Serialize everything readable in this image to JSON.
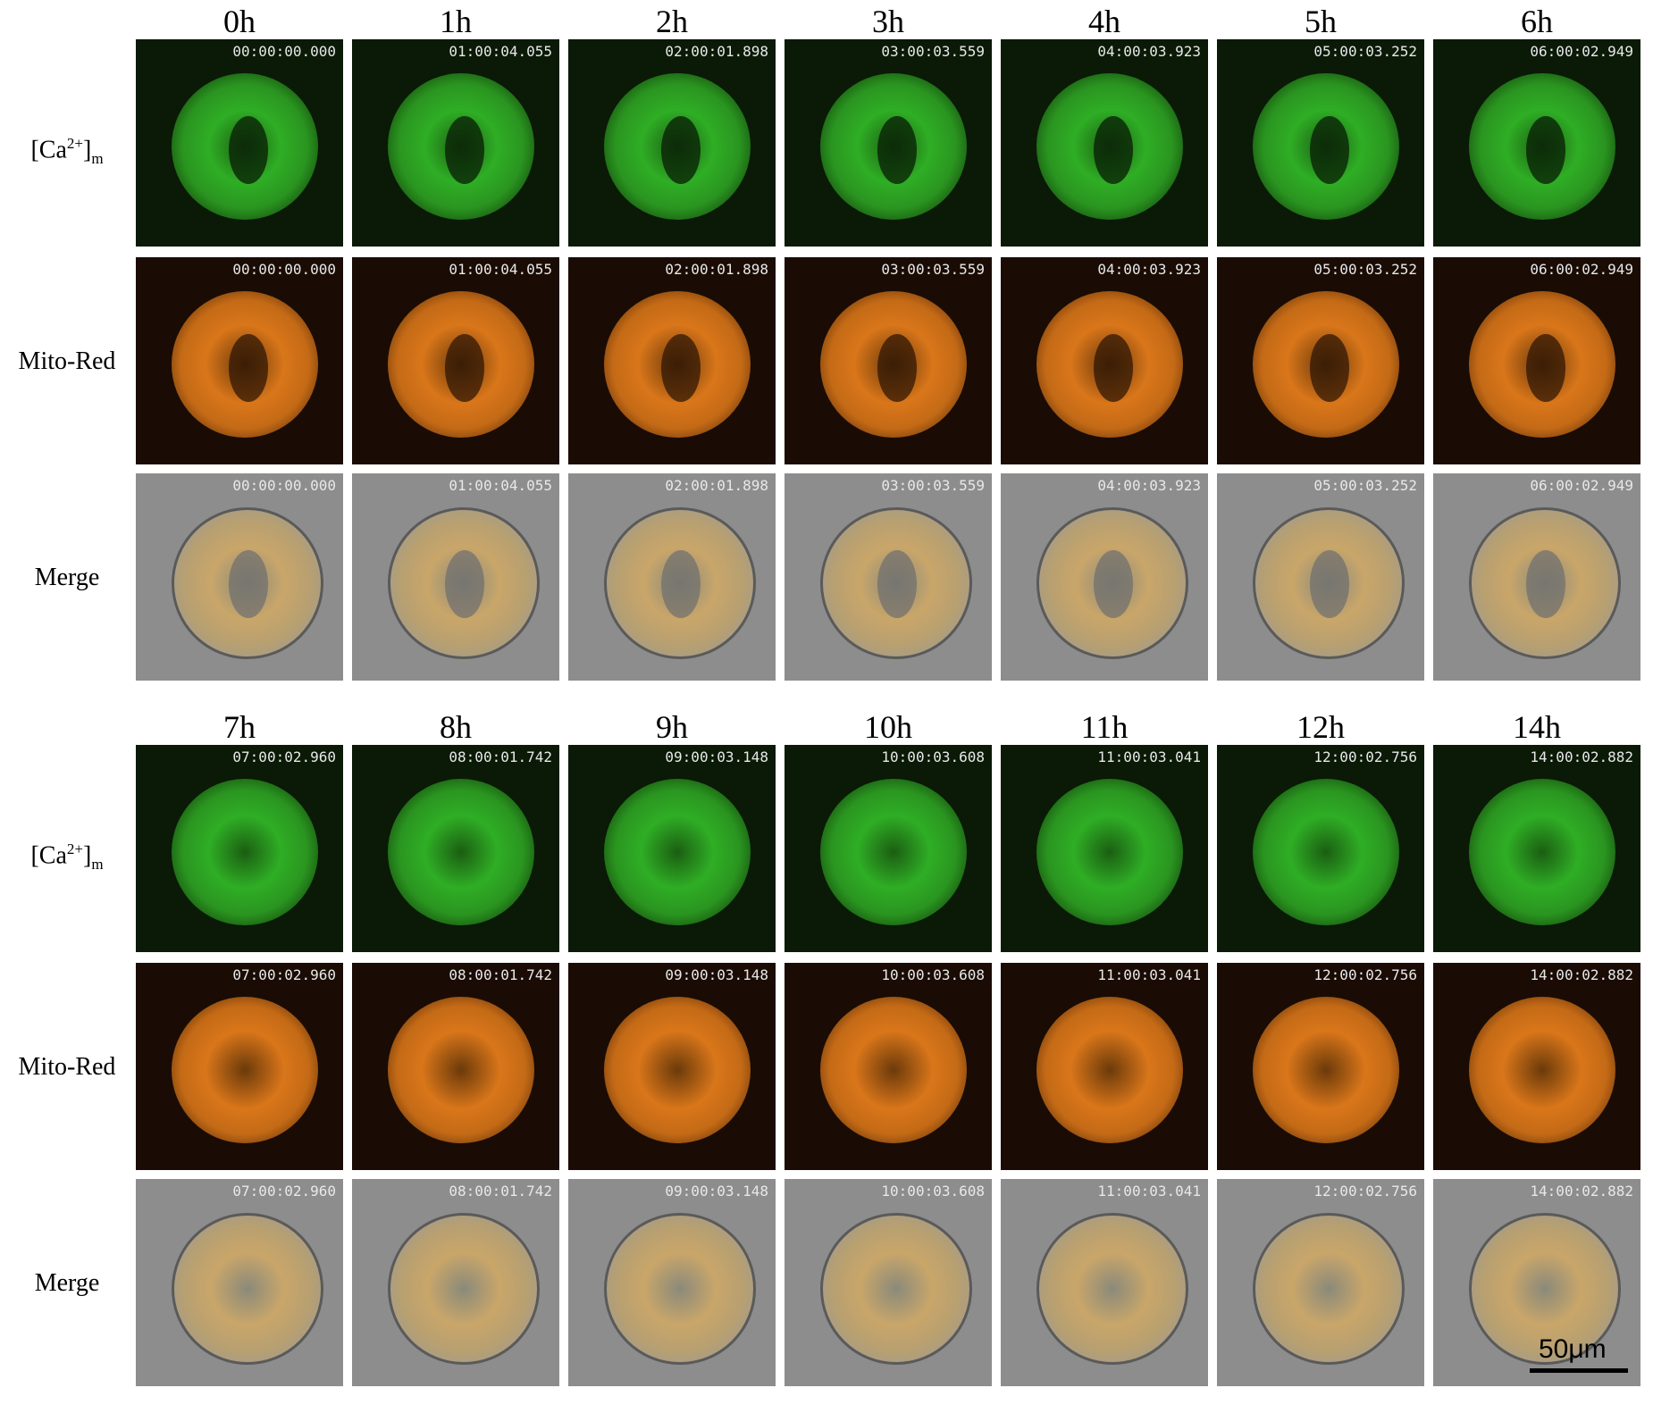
{
  "blocks": [
    {
      "times": [
        "0h",
        "1h",
        "2h",
        "3h",
        "4h",
        "5h",
        "6h"
      ],
      "stamps": [
        "00:00:00.000",
        "01:00:04.055",
        "02:00:01.898",
        "03:00:03.559",
        "04:00:03.923",
        "05:00:03.252",
        "06:00:02.949"
      ]
    },
    {
      "times": [
        "7h",
        "8h",
        "9h",
        "10h",
        "11h",
        "12h",
        "14h"
      ],
      "stamps": [
        "07:00:02.960",
        "08:00:01.742",
        "09:00:03.148",
        "10:00:03.608",
        "11:00:03.041",
        "12:00:02.756",
        "14:00:02.882"
      ]
    }
  ],
  "row_labels": {
    "ca": "[Ca2+]m",
    "ca_base": "[Ca",
    "ca_sup": "2+",
    "ca_close": "]",
    "ca_sub": "m",
    "mito": "Mito-Red",
    "merge": "Merge"
  },
  "scale_bar": "50μm",
  "colors": {
    "calcium_channel": "#2fae25",
    "mito_channel": "#d9761a",
    "merge_background": "#8d8d8d"
  }
}
